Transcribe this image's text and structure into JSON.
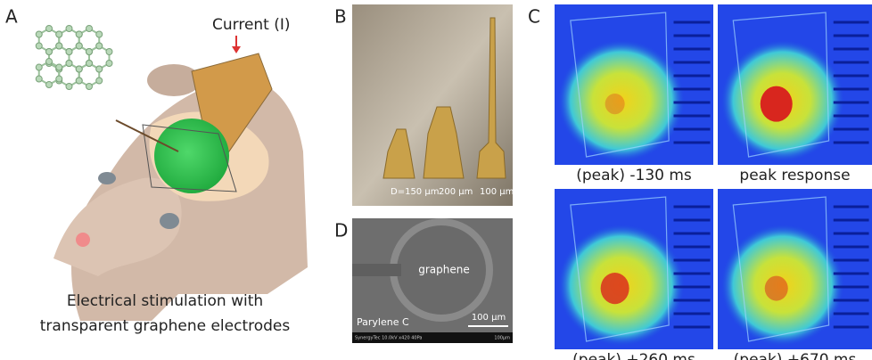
{
  "panel_a": {
    "label": "A",
    "arrow_label": "Current (I)",
    "caption": [
      "Electrical stimulation with",
      "transparent graphene electrodes"
    ]
  },
  "panel_b": {
    "label": "B",
    "sizes": [
      "D=150 µm",
      "200 µm",
      "100 µm"
    ]
  },
  "panel_c": {
    "label": "C",
    "captions": [
      "(peak) -130 ms",
      "peak response",
      "(peak) +260 ms",
      "(peak) +670 ms"
    ]
  },
  "panel_d": {
    "label": "D",
    "center_label": "graphene",
    "material_label": "Parylene C",
    "scale_bar": "100 µm",
    "footer": "SynergyTec 10.0kV x420 40Pa",
    "footer_scale": "100µm"
  }
}
